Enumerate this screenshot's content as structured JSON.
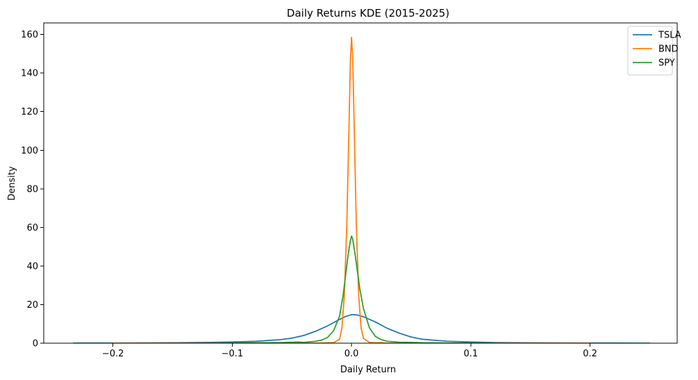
{
  "chart_data": {
    "type": "line",
    "title": "Daily Returns KDE (2015-2025)",
    "xlabel": "Daily Return",
    "ylabel": "Density",
    "xlim": [
      -0.258,
      0.273
    ],
    "ylim": [
      0,
      166
    ],
    "xticks": [
      -0.2,
      -0.1,
      0.0,
      0.1,
      0.2
    ],
    "xtick_labels": [
      "−0.2",
      "−0.1",
      "0.0",
      "0.1",
      "0.2"
    ],
    "yticks": [
      0,
      20,
      40,
      60,
      80,
      100,
      120,
      140,
      160
    ],
    "ytick_labels": [
      "0",
      "20",
      "40",
      "60",
      "80",
      "100",
      "120",
      "140",
      "160"
    ],
    "grid": false,
    "legend": {
      "placement": "top-right"
    },
    "series": [
      {
        "name": "TSLA",
        "color": "#1f77b4",
        "x": [
          -0.233,
          -0.2,
          -0.15,
          -0.12,
          -0.1,
          -0.08,
          -0.06,
          -0.05,
          -0.04,
          -0.03,
          -0.02,
          -0.01,
          -0.005,
          0.0,
          0.005,
          0.01,
          0.02,
          0.03,
          0.04,
          0.05,
          0.06,
          0.08,
          0.1,
          0.12,
          0.15,
          0.2,
          0.25
        ],
        "y": [
          0.02,
          0.05,
          0.2,
          0.4,
          0.6,
          1.0,
          1.8,
          2.6,
          4.0,
          6.2,
          9.0,
          12.3,
          13.8,
          14.8,
          14.6,
          13.7,
          11.0,
          7.7,
          5.2,
          3.2,
          2.0,
          1.0,
          0.6,
          0.3,
          0.15,
          0.05,
          0.01
        ]
      },
      {
        "name": "BND",
        "color": "#ff7f0e",
        "x": [
          -0.2,
          -0.1,
          -0.05,
          -0.045,
          -0.04,
          -0.03,
          -0.02,
          -0.015,
          -0.01,
          -0.008,
          -0.006,
          -0.004,
          -0.002,
          -0.001,
          0.0,
          0.001,
          0.002,
          0.004,
          0.006,
          0.008,
          0.01,
          0.015,
          0.02,
          0.025,
          0.03,
          0.05,
          0.1,
          0.2
        ],
        "y": [
          0.0,
          0.0,
          0.0,
          0.3,
          0.0,
          0.0,
          0.2,
          0.3,
          2.0,
          8.0,
          25.0,
          60.0,
          115.0,
          145.0,
          158.5,
          148.0,
          120.0,
          62.0,
          25.0,
          8.0,
          2.5,
          0.4,
          0.2,
          0.3,
          0.0,
          0.0,
          0.0,
          0.0
        ]
      },
      {
        "name": "SPY",
        "color": "#2ca02c",
        "x": [
          -0.11,
          -0.08,
          -0.06,
          -0.05,
          -0.045,
          -0.04,
          -0.03,
          -0.025,
          -0.02,
          -0.015,
          -0.01,
          -0.007,
          -0.005,
          -0.003,
          -0.001,
          0.0,
          0.001,
          0.003,
          0.005,
          0.007,
          0.01,
          0.015,
          0.02,
          0.025,
          0.03,
          0.04,
          0.05,
          0.06,
          0.08,
          0.12
        ],
        "y": [
          0.0,
          0.2,
          0.3,
          0.5,
          0.6,
          0.4,
          1.0,
          1.6,
          3.0,
          6.5,
          14.0,
          25.0,
          35.0,
          45.0,
          53.0,
          55.5,
          54.0,
          46.0,
          37.0,
          28.0,
          18.0,
          8.0,
          3.5,
          1.8,
          1.0,
          0.5,
          0.4,
          0.2,
          0.1,
          0.0
        ]
      }
    ]
  }
}
